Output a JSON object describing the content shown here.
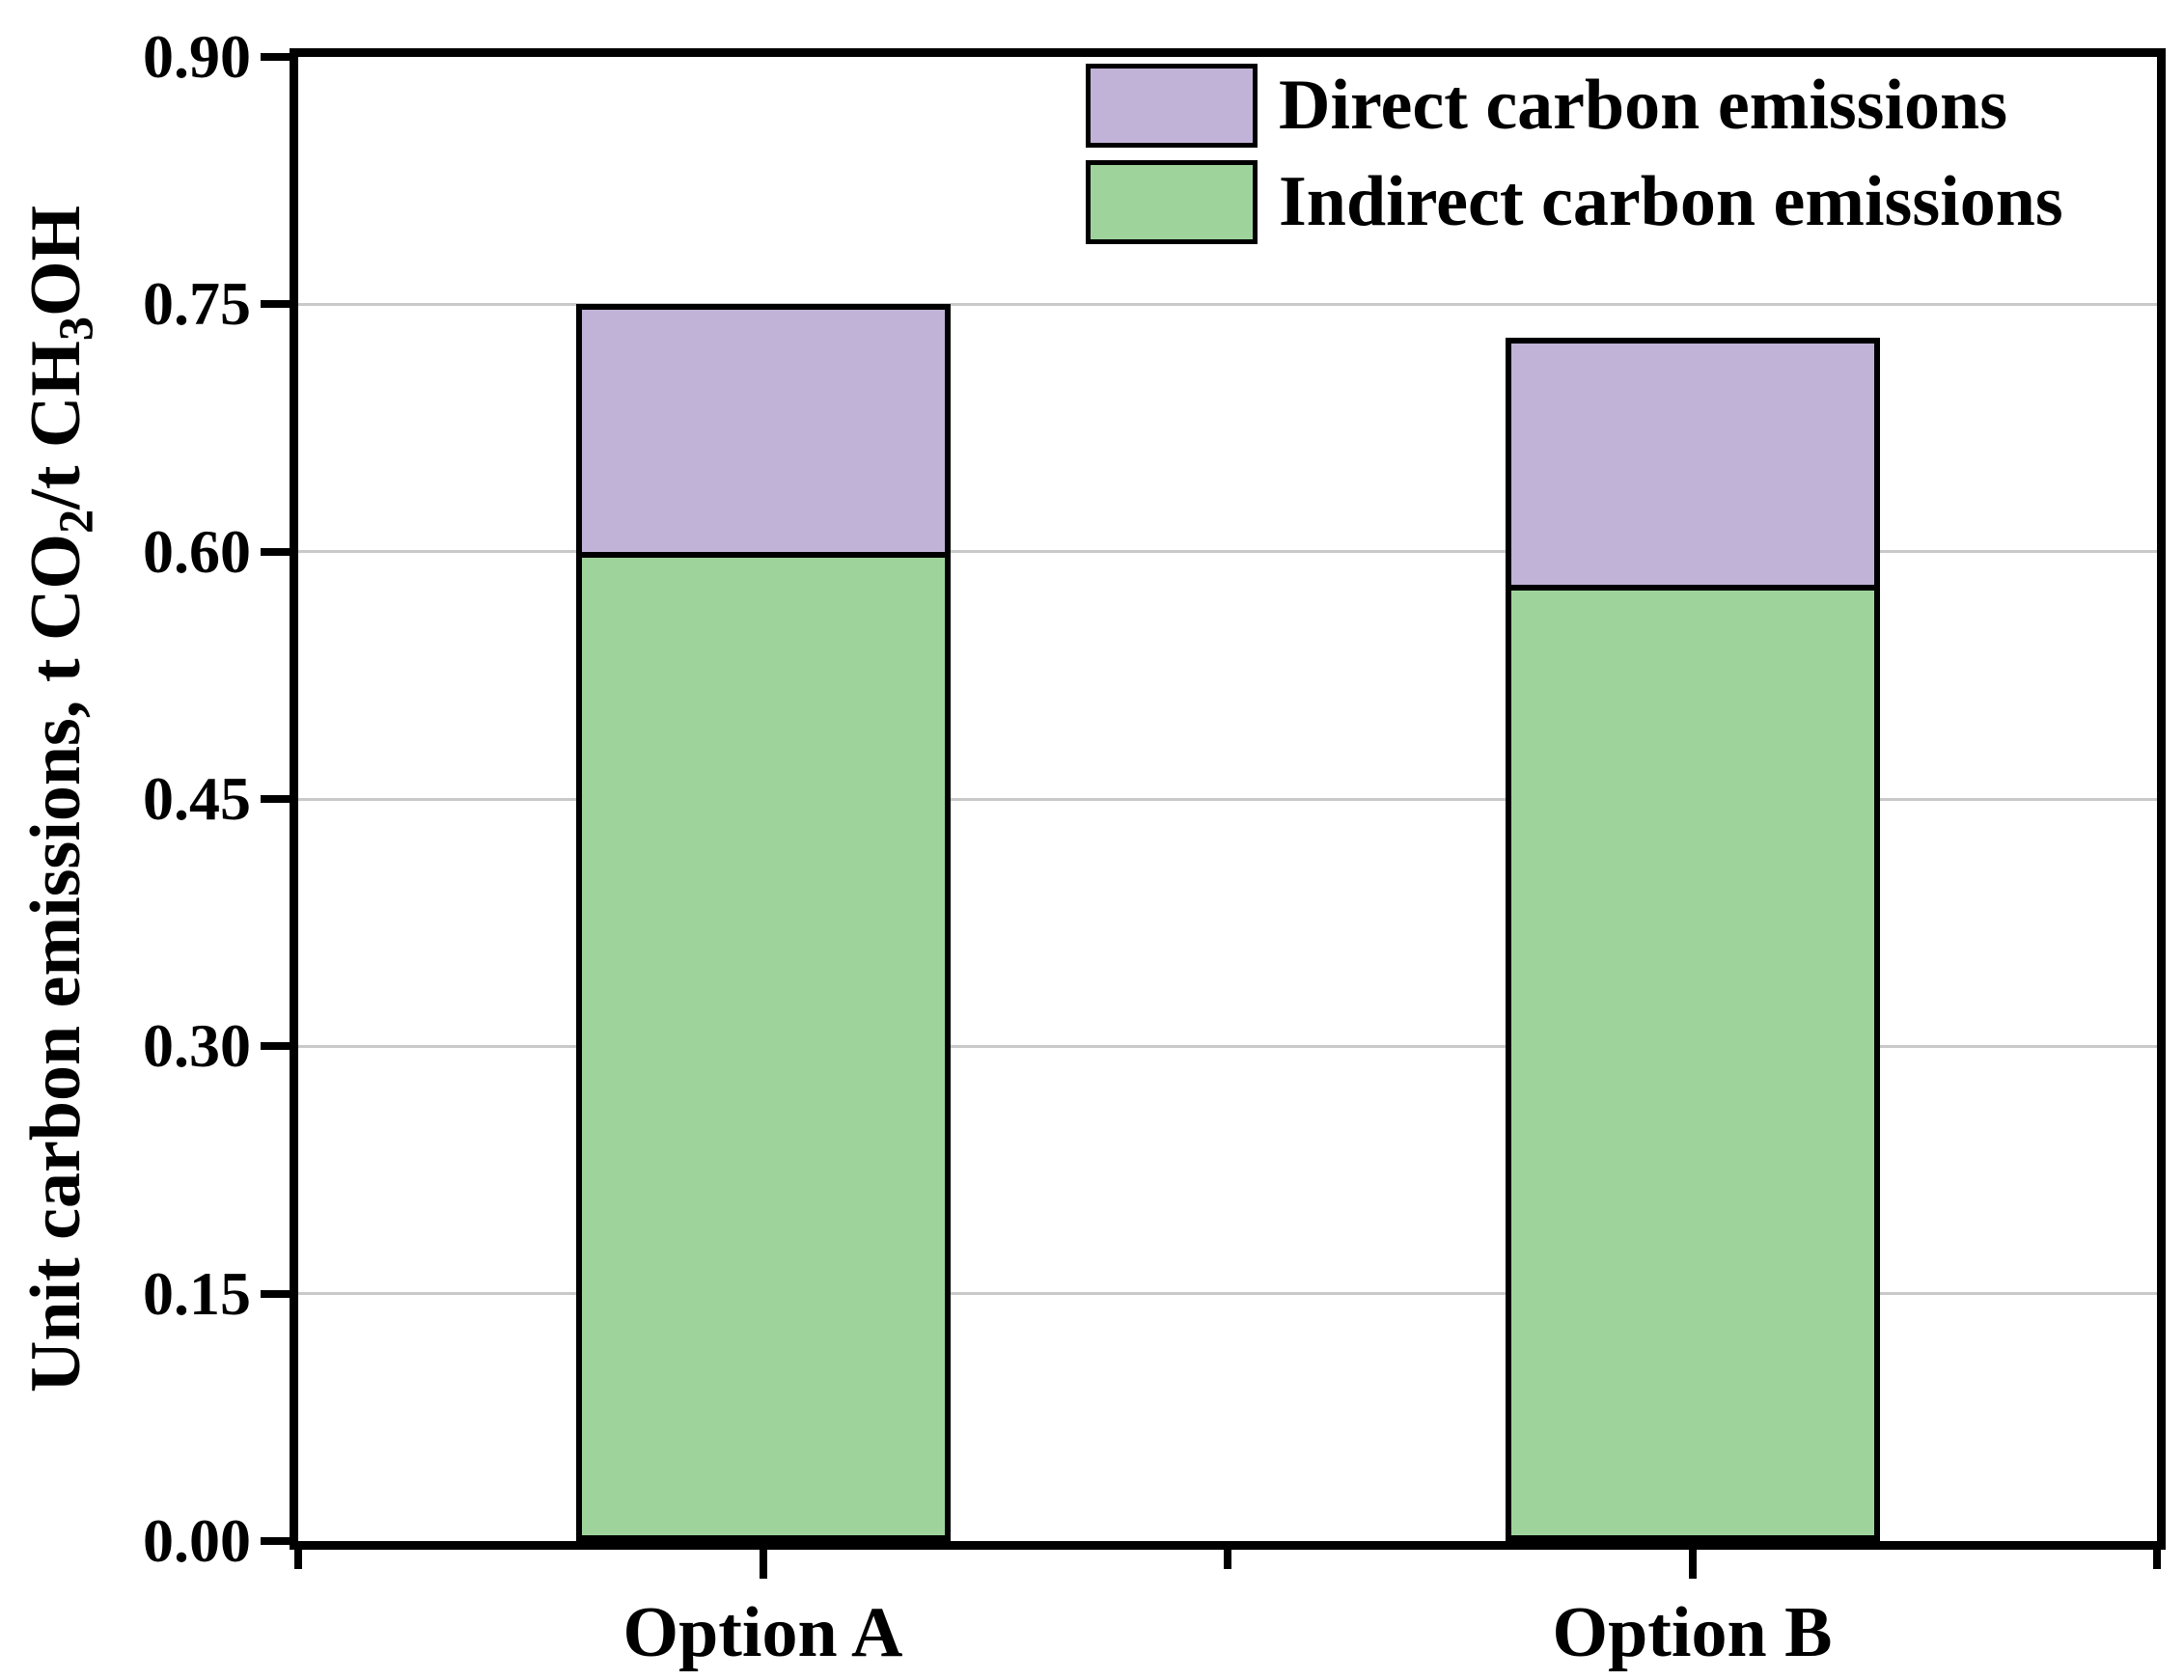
{
  "figure": {
    "background": "#ffffff",
    "axis_color": "#000000",
    "gridline_color": "#c9c9c9"
  },
  "chart_data": {
    "type": "bar",
    "stacked": true,
    "title": "",
    "categories": [
      "Option A",
      "Option B"
    ],
    "series": [
      {
        "name": "Indirect carbon emissions",
        "key": "indirect",
        "color": "#9ed49c",
        "values": [
          0.6,
          0.58
        ]
      },
      {
        "name": "Direct carbon emissions",
        "key": "direct",
        "color": "#c1b2d7",
        "values": [
          0.15,
          0.15
        ]
      }
    ],
    "totals": [
      0.75,
      0.73
    ],
    "xlabel": "",
    "ylabel_text": "Unit carbon emissions, t CO2/t CH3OH",
    "ylabel_parts": [
      {
        "text": "Unit carbon emissions, t CO",
        "sub": false
      },
      {
        "text": "2",
        "sub": true
      },
      {
        "text": "/t CH",
        "sub": false
      },
      {
        "text": "3",
        "sub": true
      },
      {
        "text": "OH",
        "sub": false
      }
    ],
    "ylim": [
      0.0,
      0.9
    ],
    "ytick_step": 0.15,
    "yticks": [
      0.0,
      0.15,
      0.3,
      0.45,
      0.6,
      0.75,
      0.9
    ],
    "ytick_labels": [
      "0.00",
      "0.15",
      "0.30",
      "0.45",
      "0.60",
      "0.75",
      "0.90"
    ],
    "grid": "horizontal",
    "legend_position": "top-right-inside",
    "legend": {
      "entries": [
        {
          "label": "Direct carbon emissions",
          "color": "#c1b2d7"
        },
        {
          "label": "Indirect carbon emissions",
          "color": "#9ed49c"
        }
      ]
    }
  }
}
